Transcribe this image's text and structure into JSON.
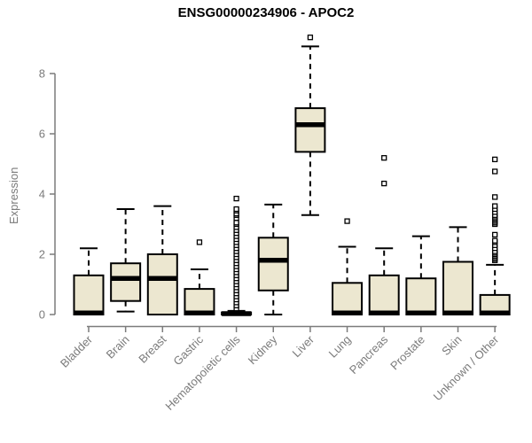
{
  "colors": {
    "background": "#ffffff",
    "box_fill": "#ece7d0",
    "box_stroke": "#000000",
    "median": "#000000",
    "axis": "#7b7b7b",
    "tick_label": "#7b7b7b",
    "title": "#000000",
    "outlier_fill": "#ffffff"
  },
  "chart_data": {
    "type": "boxplot",
    "title": "ENSG00000234906 - APOC2",
    "xlabel": "",
    "ylabel": "Expression",
    "ylim": [
      0,
      9.4
    ],
    "yticks": [
      0,
      2,
      4,
      6,
      8
    ],
    "grid": false,
    "categories": [
      "Bladder",
      "Brain",
      "Breast",
      "Gastric",
      "Hematopoietic cells",
      "Kidney",
      "Liver",
      "Lung",
      "Pancreas",
      "Prostate",
      "Skin",
      "Unknown / Other"
    ],
    "series": [
      {
        "name": "Bladder",
        "whisker_low": 0,
        "q1": 0,
        "median": 0.05,
        "q3": 1.3,
        "whisker_high": 2.2,
        "outliers": []
      },
      {
        "name": "Brain",
        "whisker_low": 0.1,
        "q1": 0.45,
        "median": 1.2,
        "q3": 1.7,
        "whisker_high": 3.5,
        "outliers": []
      },
      {
        "name": "Breast",
        "whisker_low": 0,
        "q1": 0,
        "median": 1.2,
        "q3": 2.0,
        "whisker_high": 3.6,
        "outliers": []
      },
      {
        "name": "Gastric",
        "whisker_low": 0,
        "q1": 0,
        "median": 0.05,
        "q3": 0.85,
        "whisker_high": 1.5,
        "outliers": [
          2.4
        ]
      },
      {
        "name": "Hematopoietic cells",
        "whisker_low": 0,
        "q1": 0,
        "median": 0.03,
        "q3": 0.07,
        "whisker_high": 0.12,
        "outliers": [
          0.2,
          0.3,
          0.4,
          0.5,
          0.6,
          0.7,
          0.8,
          0.9,
          1.0,
          1.1,
          1.2,
          1.3,
          1.4,
          1.5,
          1.6,
          1.7,
          1.8,
          1.9,
          2.0,
          2.1,
          2.2,
          2.3,
          2.4,
          2.5,
          2.6,
          2.7,
          2.8,
          2.9,
          3.0,
          3.05,
          3.2,
          3.3,
          3.35,
          3.45,
          3.5,
          3.85
        ]
      },
      {
        "name": "Kidney",
        "whisker_low": 0,
        "q1": 0.8,
        "median": 1.8,
        "q3": 2.55,
        "whisker_high": 3.65,
        "outliers": []
      },
      {
        "name": "Liver",
        "whisker_low": 3.3,
        "q1": 5.4,
        "median": 6.3,
        "q3": 6.85,
        "whisker_high": 8.9,
        "outliers": [
          9.2
        ]
      },
      {
        "name": "Lung",
        "whisker_low": 0,
        "q1": 0,
        "median": 0.05,
        "q3": 1.05,
        "whisker_high": 2.25,
        "outliers": [
          3.1
        ]
      },
      {
        "name": "Pancreas",
        "whisker_low": 0,
        "q1": 0,
        "median": 0.05,
        "q3": 1.3,
        "whisker_high": 2.2,
        "outliers": [
          4.35,
          5.2
        ]
      },
      {
        "name": "Prostate",
        "whisker_low": 0,
        "q1": 0,
        "median": 0.05,
        "q3": 1.2,
        "whisker_high": 2.6,
        "outliers": []
      },
      {
        "name": "Skin",
        "whisker_low": 0,
        "q1": 0,
        "median": 0.05,
        "q3": 1.75,
        "whisker_high": 2.9,
        "outliers": []
      },
      {
        "name": "Unknown / Other",
        "whisker_low": 0,
        "q1": 0,
        "median": 0.05,
        "q3": 0.65,
        "whisker_high": 1.65,
        "outliers": [
          1.8,
          1.85,
          1.9,
          1.95,
          2.0,
          2.05,
          2.1,
          2.2,
          2.3,
          2.4,
          2.45,
          2.65,
          3.0,
          3.05,
          3.1,
          3.15,
          3.2,
          3.25,
          3.3,
          3.4,
          3.5,
          3.6,
          3.9,
          4.75,
          5.15
        ]
      }
    ]
  }
}
